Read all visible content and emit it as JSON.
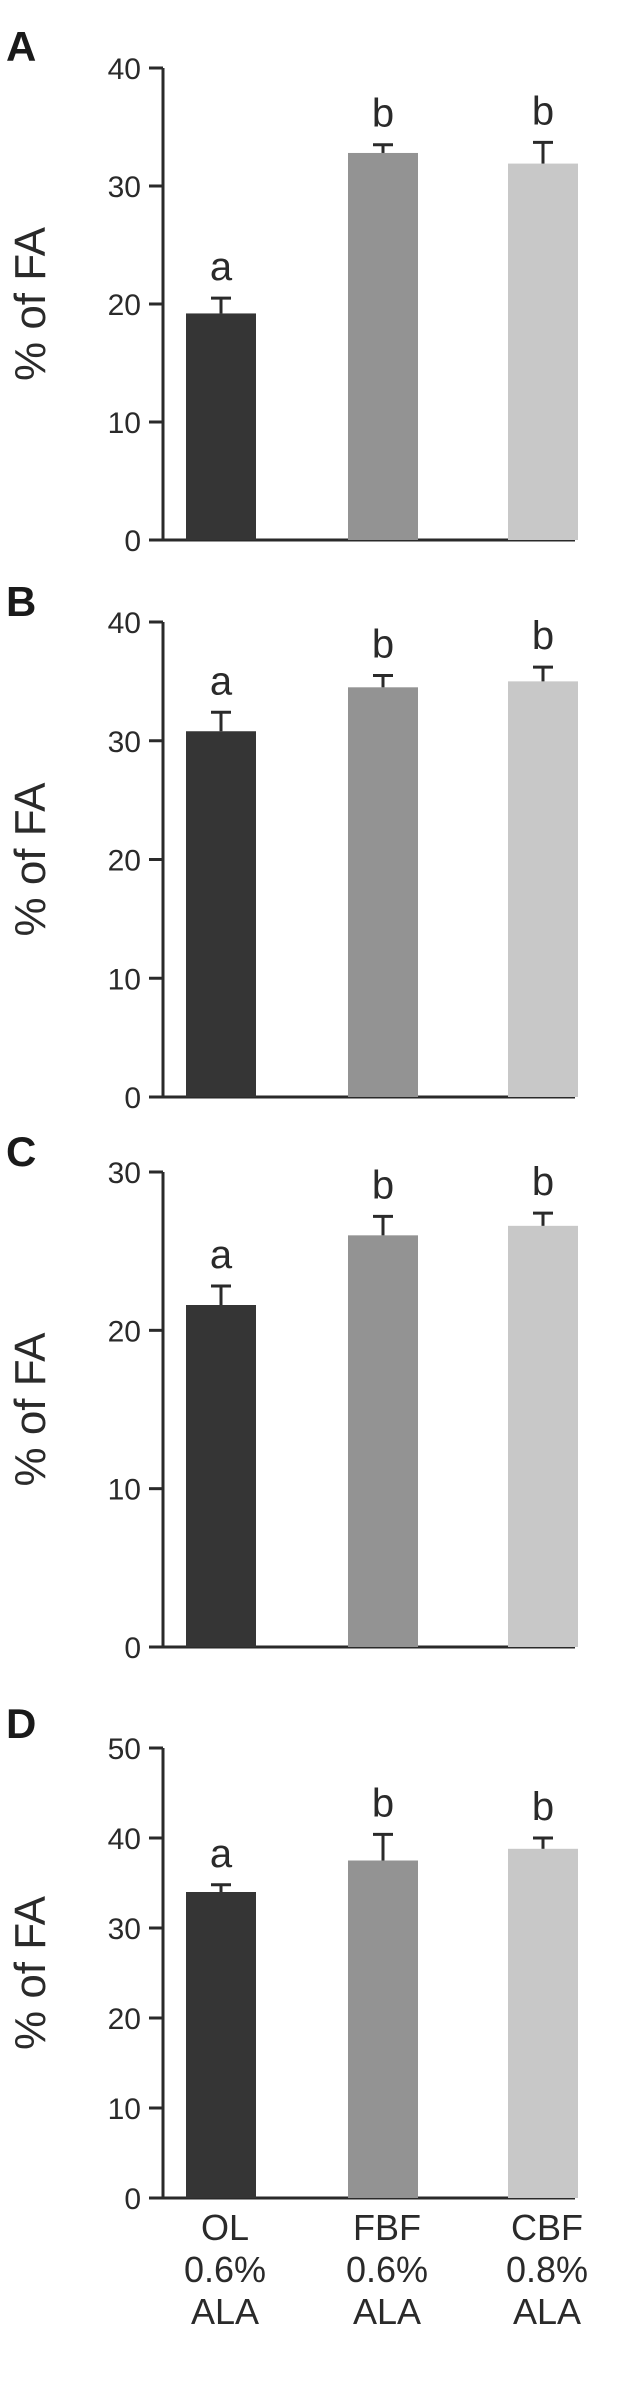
{
  "colors": {
    "axis": "#2a2a2a",
    "bars": [
      "#353535",
      "#939393",
      "#c8c8c8"
    ],
    "background": "#ffffff"
  },
  "x_categories": [
    [
      "OL",
      "0.6%",
      "ALA"
    ],
    [
      "FBF",
      "0.6%",
      "ALA"
    ],
    [
      "CBF",
      "0.8%",
      "ALA"
    ]
  ],
  "chart_data": [
    {
      "type": "bar",
      "panel": "A",
      "ylabel": "% of FA",
      "ylim": [
        0,
        40
      ],
      "yticks": [
        0,
        10,
        20,
        30,
        40
      ],
      "categories": [
        "OL 0.6% ALA",
        "FBF 0.6% ALA",
        "CBF 0.8% ALA"
      ],
      "values": [
        19.2,
        32.8,
        31.9
      ],
      "errors": [
        1.3,
        0.7,
        1.8
      ],
      "significance": [
        "a",
        "b",
        "b"
      ]
    },
    {
      "type": "bar",
      "panel": "B",
      "ylabel": "% of FA",
      "ylim": [
        0,
        40
      ],
      "yticks": [
        0,
        10,
        20,
        30,
        40
      ],
      "categories": [
        "OL 0.6% ALA",
        "FBF 0.6% ALA",
        "CBF 0.8% ALA"
      ],
      "values": [
        30.8,
        34.5,
        35.0
      ],
      "errors": [
        1.6,
        1.0,
        1.2
      ],
      "significance": [
        "a",
        "b",
        "b"
      ]
    },
    {
      "type": "bar",
      "panel": "C",
      "ylabel": "% of FA",
      "ylim": [
        0,
        30
      ],
      "yticks": [
        0,
        10,
        20,
        30
      ],
      "categories": [
        "OL 0.6% ALA",
        "FBF 0.6% ALA",
        "CBF 0.8% ALA"
      ],
      "values": [
        21.6,
        26.0,
        26.6
      ],
      "errors": [
        1.2,
        1.2,
        0.8
      ],
      "significance": [
        "a",
        "b",
        "b"
      ]
    },
    {
      "type": "bar",
      "panel": "D",
      "ylabel": "% of FA",
      "ylim": [
        0,
        50
      ],
      "yticks": [
        0,
        10,
        20,
        30,
        40,
        50
      ],
      "categories": [
        "OL 0.6% ALA",
        "FBF 0.6% ALA",
        "CBF 0.8% ALA"
      ],
      "values": [
        34.0,
        37.5,
        38.8
      ],
      "errors": [
        0.8,
        2.9,
        1.2
      ],
      "significance": [
        "a",
        "b",
        "b"
      ]
    }
  ]
}
